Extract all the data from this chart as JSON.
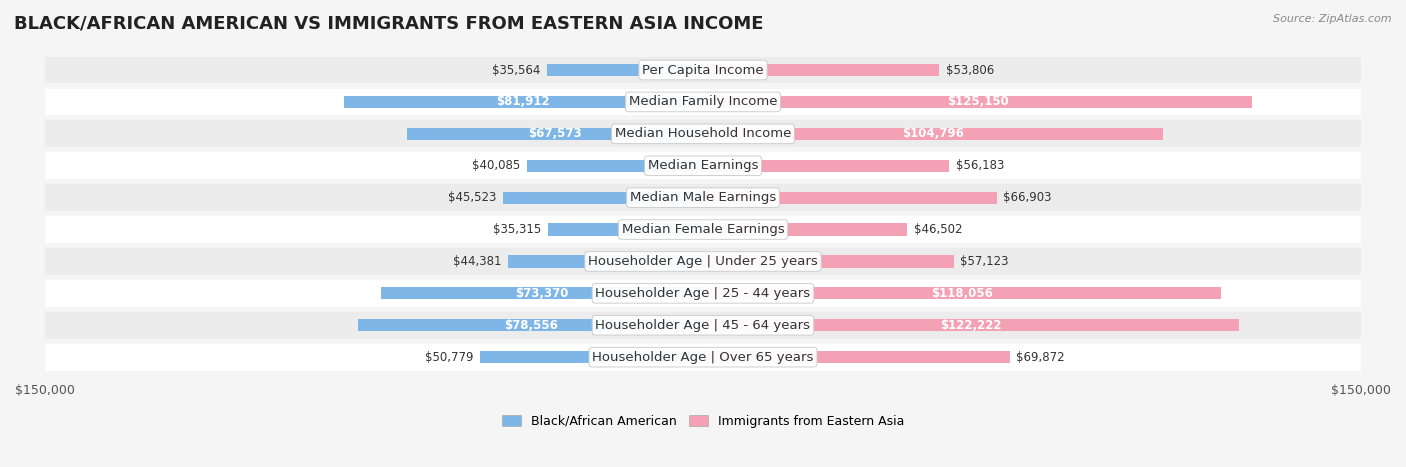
{
  "title": "BLACK/AFRICAN AMERICAN VS IMMIGRANTS FROM EASTERN ASIA INCOME",
  "source": "Source: ZipAtlas.com",
  "categories": [
    "Per Capita Income",
    "Median Family Income",
    "Median Household Income",
    "Median Earnings",
    "Median Male Earnings",
    "Median Female Earnings",
    "Householder Age | Under 25 years",
    "Householder Age | 25 - 44 years",
    "Householder Age | 45 - 64 years",
    "Householder Age | Over 65 years"
  ],
  "black_values": [
    35564,
    81912,
    67573,
    40085,
    45523,
    35315,
    44381,
    73370,
    78556,
    50779
  ],
  "eastern_asia_values": [
    53806,
    125150,
    104796,
    56183,
    66903,
    46502,
    57123,
    118056,
    122222,
    69872
  ],
  "black_color": "#7EB6E8",
  "black_color_dark": "#5A9FD4",
  "eastern_asia_color": "#F4A0B5",
  "eastern_asia_color_dark": "#E8607A",
  "axis_limit": 150000,
  "background_color": "#f5f5f5",
  "row_bg_color": "#ececec",
  "row_bg_color2": "#ffffff",
  "label_fontsize": 9.5,
  "title_fontsize": 13,
  "value_fontsize": 8.5
}
